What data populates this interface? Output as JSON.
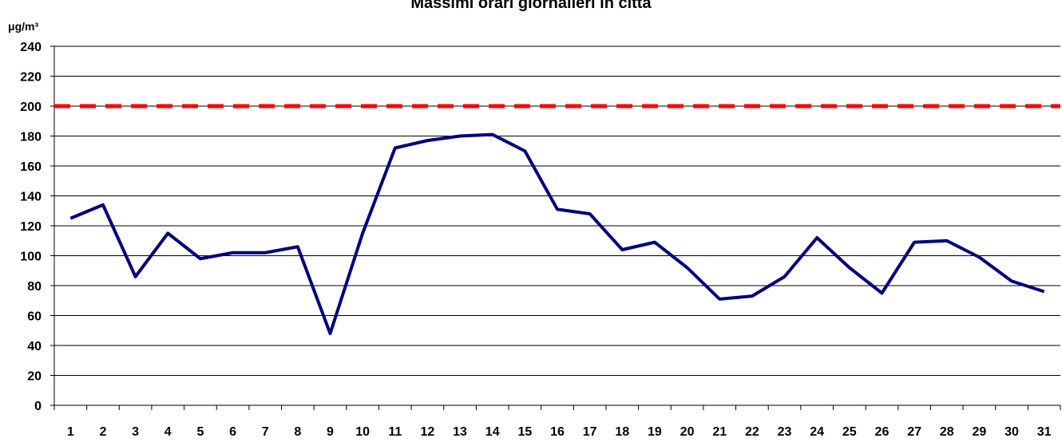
{
  "chart_data": {
    "type": "line",
    "title": "Massimi orari giornalieri in città",
    "y_label": "μg/m³",
    "categories": [
      "1",
      "2",
      "3",
      "4",
      "5",
      "6",
      "7",
      "8",
      "9",
      "10",
      "11",
      "12",
      "13",
      "14",
      "15",
      "16",
      "17",
      "18",
      "19",
      "20",
      "21",
      "22",
      "23",
      "24",
      "25",
      "26",
      "27",
      "28",
      "29",
      "30",
      "31"
    ],
    "series": [
      {
        "color": "#000080",
        "values": [
          125,
          134,
          86,
          115,
          98,
          102,
          102,
          106,
          48,
          115,
          172,
          177,
          180,
          181,
          170,
          131,
          128,
          104,
          109,
          92,
          71,
          73,
          86,
          112,
          92,
          75,
          109,
          110,
          99,
          83,
          76
        ]
      }
    ],
    "reference_line": {
      "value": 200,
      "color": "#ff0000"
    },
    "ylim": [
      0,
      240
    ],
    "yticks": [
      0,
      20,
      40,
      60,
      80,
      100,
      120,
      140,
      160,
      180,
      200,
      220,
      240
    ],
    "grid": true
  }
}
